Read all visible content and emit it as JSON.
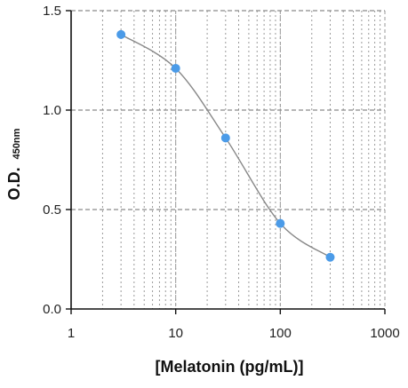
{
  "chart_data": {
    "type": "scatter",
    "title": "",
    "xlabel": "[Melatonin (pg/mL)]",
    "ylabel": "O.D.",
    "ylabel_sub": "450nm",
    "x_scale": "log",
    "xlim": [
      1,
      1000
    ],
    "ylim": [
      0,
      1.5
    ],
    "xticks": [
      "1",
      "10",
      "100",
      "1000"
    ],
    "yticks": [
      "0.0",
      "0.5",
      "1.0",
      "1.5"
    ],
    "grid": true,
    "series": [
      {
        "x": [
          3,
          10,
          30,
          100,
          300
        ],
        "y": [
          1.38,
          1.21,
          0.86,
          0.43,
          0.26
        ],
        "point_color": "#4b9be8",
        "curve_color": "#888888"
      }
    ]
  }
}
